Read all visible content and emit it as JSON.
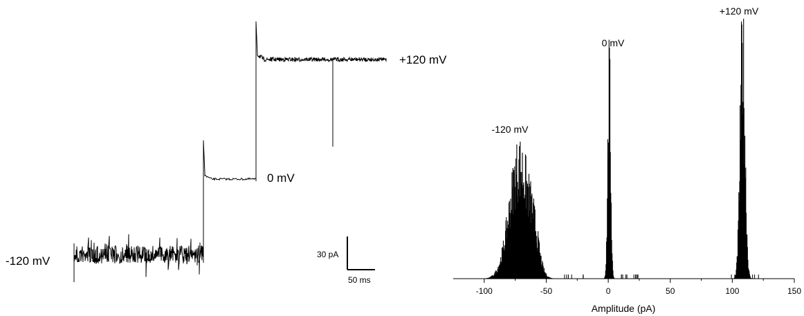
{
  "trace_panel": {
    "labels": {
      "minus120": "-120 mV",
      "zero": "0 mV",
      "plus120": "+120 mV"
    },
    "scale_bar": {
      "current_label": "30 pA",
      "time_label": "50 ms"
    }
  },
  "chart_data": {
    "type": "bar",
    "xlabel": "Amplitude (pA)",
    "xlim": [
      -125,
      150
    ],
    "x_ticks": [
      -100,
      -50,
      0,
      50,
      100,
      150
    ],
    "x_tick_labels": [
      "-100",
      "-50",
      "0",
      "50",
      "100",
      "150"
    ],
    "peak_labels": [
      "-120 mV",
      "0 mV",
      "+120 mV"
    ],
    "series": [
      {
        "name": "-120 mV",
        "center": -72,
        "width": 8,
        "relative_height": 0.5
      },
      {
        "name": "0 mV",
        "center": 0.5,
        "width": 1.2,
        "relative_height": 0.85
      },
      {
        "name": "+120 mV",
        "center": 108,
        "width": 2,
        "relative_height": 1.0
      }
    ]
  }
}
